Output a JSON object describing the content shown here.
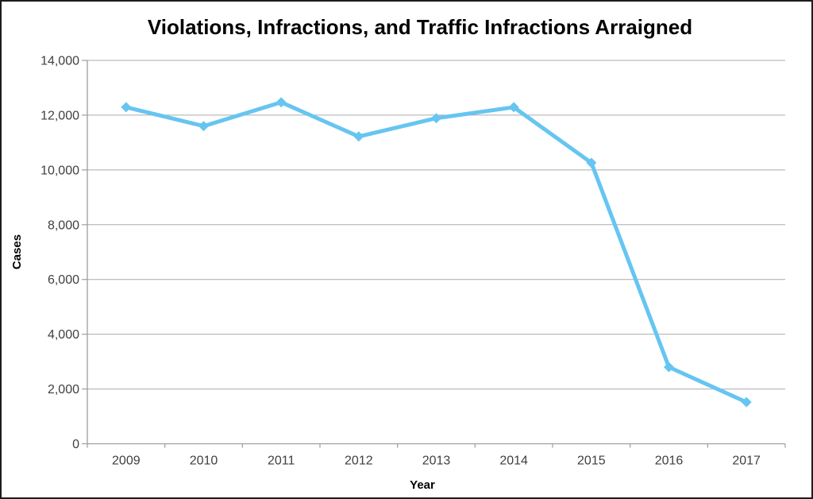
{
  "figure": {
    "background_color": "#ffffff",
    "border_color": "#1c1c1c"
  },
  "chart_data": {
    "type": "line",
    "title": "Violations, Infractions, and Traffic Infractions Arraigned",
    "xlabel": "Year",
    "ylabel": "Cases",
    "categories": [
      "2009",
      "2010",
      "2011",
      "2012",
      "2013",
      "2014",
      "2015",
      "2016",
      "2017"
    ],
    "series": [
      {
        "name": "Violations, Infractions, and Traffic Infractions Arraigned",
        "values": [
          12290,
          11600,
          12470,
          11220,
          11890,
          12290,
          10260,
          2800,
          1520
        ]
      }
    ],
    "ylim": [
      0,
      14000
    ],
    "ytick_values": [
      0,
      2000,
      4000,
      6000,
      8000,
      10000,
      12000,
      14000
    ],
    "ytick_labels": [
      "0",
      "2,000",
      "4,000",
      "6,000",
      "8,000",
      "10,000",
      "12,000",
      "14,000"
    ],
    "grid": "horizontal",
    "legend": "none",
    "marker": "diamond",
    "line_color": "#66C5F1",
    "gridline_color": "#ABABAB",
    "axis_color": "#9E9E9E",
    "tick_label_color": "#404040",
    "title_color": "#000000"
  }
}
